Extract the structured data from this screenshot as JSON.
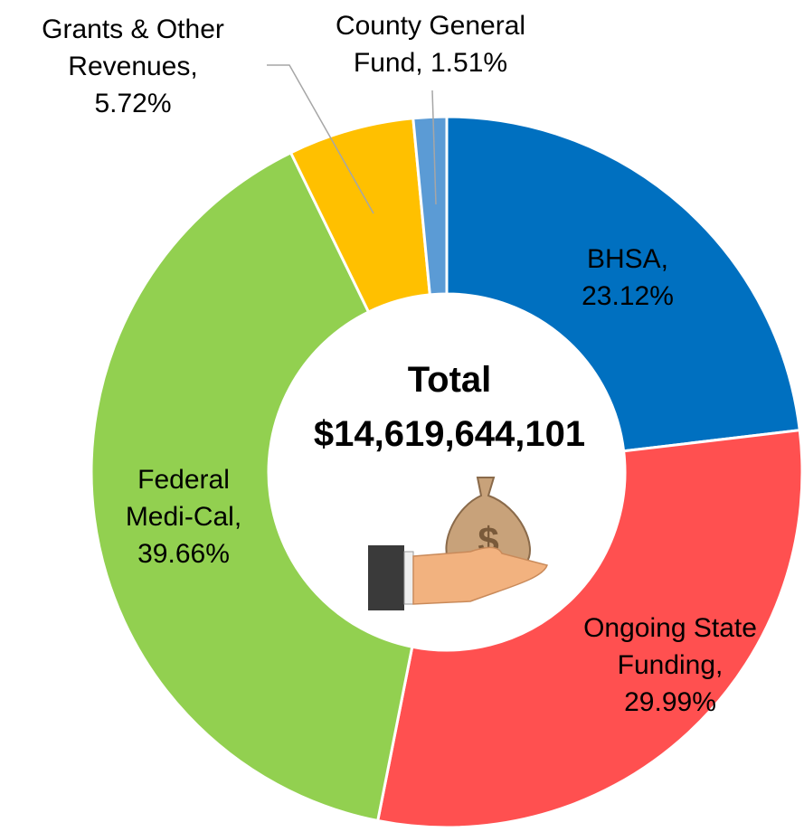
{
  "chart_data": {
    "type": "donut",
    "categories": [
      "BHSA,",
      "Ongoing State Funding,",
      "Federal Medi-Cal,",
      "Grants & Other Revenues,",
      "County General Fund,"
    ],
    "values": [
      23.12,
      29.99,
      39.66,
      5.72,
      1.51
    ],
    "value_labels": [
      "23.12%",
      "29.99%",
      "39.66%",
      "5.72%",
      "1.51%"
    ],
    "colors": [
      "#0070c0",
      "#ff5050",
      "#92d050",
      "#ffc000",
      "#5b9bd5"
    ],
    "center_title": "Total",
    "total": {
      "value": 14619644101,
      "label": "$14,619,644,101"
    }
  }
}
